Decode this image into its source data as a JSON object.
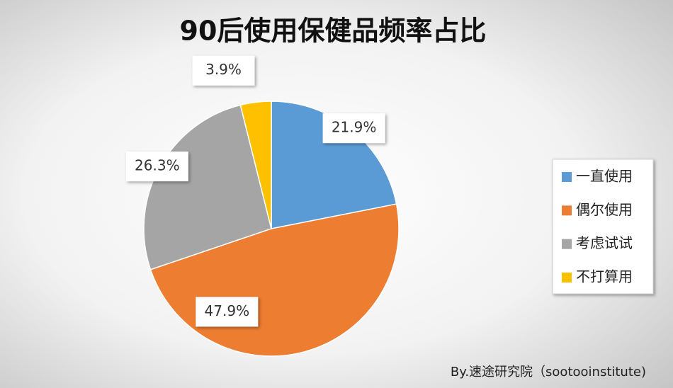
{
  "chart_data": {
    "type": "pie",
    "title": "90后使用保健品频率占比",
    "categories": [
      "一直使用",
      "偶尔使用",
      "考虑试试",
      "不打算用"
    ],
    "values": [
      21.9,
      47.9,
      26.3,
      3.9
    ],
    "value_labels": [
      "21.9%",
      "47.9%",
      "26.3%",
      "3.9%"
    ],
    "colors": [
      "#5b9bd5",
      "#ed7d31",
      "#a5a5a5",
      "#ffc000"
    ],
    "legend": "right",
    "footnote": "By.速途研究院（sootooinstitute)"
  }
}
